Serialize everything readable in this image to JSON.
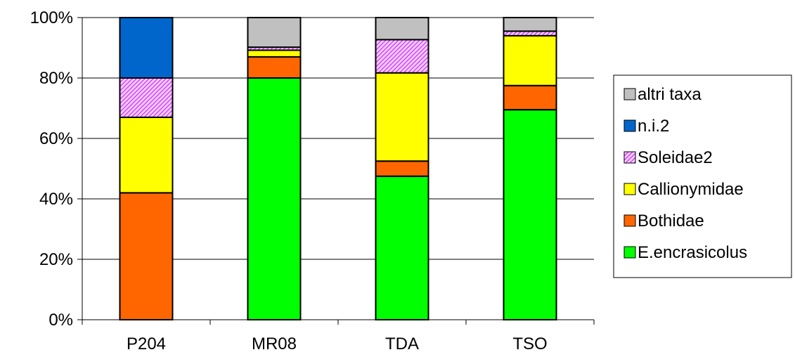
{
  "chart_data": {
    "type": "bar",
    "stacked": true,
    "percent": true,
    "categories": [
      "P204",
      "MR08",
      "TDA",
      "TSO"
    ],
    "series": [
      {
        "name": "E.encrasicolus",
        "color": "#00FF00",
        "pattern": "solid",
        "values": [
          0,
          80,
          47.5,
          69.5
        ]
      },
      {
        "name": "Bothidae",
        "color": "#FF6600",
        "pattern": "solid",
        "values": [
          42,
          7,
          5,
          8
        ]
      },
      {
        "name": "Callionymidae",
        "color": "#FFFF00",
        "pattern": "solid",
        "values": [
          25,
          2.2,
          29.2,
          16.5
        ]
      },
      {
        "name": "Soleidae2",
        "color": "#CC66FF",
        "pattern": "hatch",
        "values": [
          13,
          1,
          11,
          1.5
        ]
      },
      {
        "name": "n.i.2",
        "color": "#0066CC",
        "pattern": "solid",
        "values": [
          20,
          0,
          0,
          0
        ]
      },
      {
        "name": "altri taxa",
        "color": "#C0C0C0",
        "pattern": "solid",
        "values": [
          0,
          9.8,
          7.3,
          4.5
        ]
      }
    ],
    "ylim": [
      0,
      100
    ],
    "yticks": [
      0,
      20,
      40,
      60,
      80,
      100
    ],
    "ytick_labels": [
      "0%",
      "20%",
      "40%",
      "60%",
      "80%",
      "100%"
    ],
    "title": "",
    "xlabel": "",
    "ylabel": "",
    "grid": "horizontal",
    "legend_position": "right",
    "legend_order": [
      "altri taxa",
      "n.i.2",
      "Soleidae2",
      "Callionymidae",
      "Bothidae",
      "E.encrasicolus"
    ]
  }
}
